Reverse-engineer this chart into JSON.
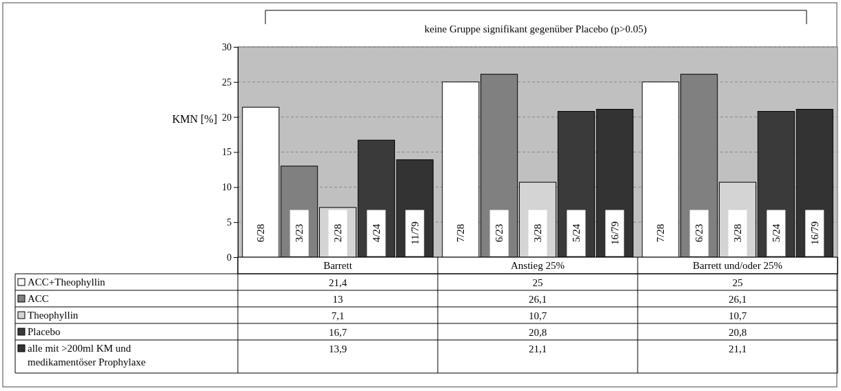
{
  "chart_data": {
    "type": "bar",
    "ylabel": "KMN [%]",
    "categories": [
      "Barrett",
      "Anstieg 25%",
      "Barrett und/oder 25%"
    ],
    "series": [
      {
        "name": "ACC+Theophyllin",
        "color": "#ffffff",
        "values": [
          21.4,
          25,
          25
        ],
        "value_labels": [
          "21,4",
          "25",
          "25"
        ]
      },
      {
        "name": "ACC",
        "color": "#808080",
        "values": [
          13,
          26.1,
          26.1
        ],
        "value_labels": [
          "13",
          "26,1",
          "26,1"
        ]
      },
      {
        "name": "Theophyllin",
        "color": "#d4d4d4",
        "values": [
          7.1,
          10.7,
          10.7
        ],
        "value_labels": [
          "7,1",
          "10,7",
          "10,7"
        ]
      },
      {
        "name": "Placebo",
        "color": "#3a3a3a",
        "values": [
          16.7,
          20.8,
          20.8
        ],
        "value_labels": [
          "16,7",
          "20,8",
          "20,8"
        ]
      },
      {
        "name": "alle mit >200ml KM und medikamentöser Prophylaxe",
        "color": "#333333",
        "values": [
          13.9,
          21.1,
          21.1
        ],
        "value_labels": [
          "13,9",
          "21,1",
          "21,1"
        ]
      }
    ],
    "ylim": [
      0,
      30
    ],
    "yticks": [
      0,
      5,
      10,
      15,
      20,
      25,
      30
    ],
    "grid": "y",
    "legend": "bottom",
    "annotations": [
      "keine Gruppe signifikant gegenüber Placebo (p>0.05)",
      "6/28",
      "3/23",
      "2/28",
      "4/24",
      "11/79",
      "7/28",
      "6/23",
      "3/28",
      "5/24",
      "16/79",
      "7/28",
      "6/23",
      "3/28",
      "5/24",
      "16/79"
    ]
  }
}
